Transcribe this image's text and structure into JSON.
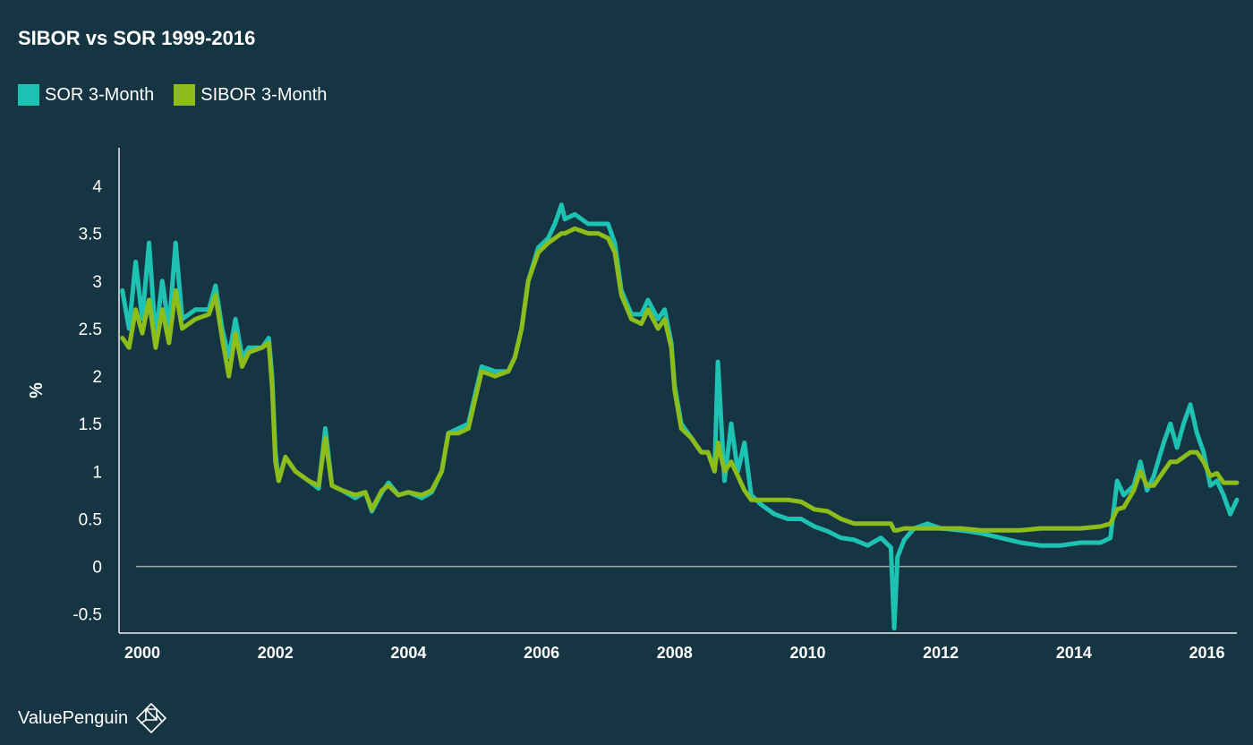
{
  "chart_data": {
    "type": "line",
    "title": "SIBOR vs SOR 1999-2016",
    "ylabel": "%",
    "xlabel": "",
    "xlim": [
      1999.65,
      2016.45
    ],
    "ylim": [
      -0.7,
      4.4
    ],
    "yticks": [
      "4",
      "3.5",
      "3",
      "2.5",
      "2",
      "1.5",
      "1",
      "0.5",
      "0",
      "-0.5"
    ],
    "xticks": [
      "2000",
      "2002",
      "2004",
      "2006",
      "2008",
      "2010",
      "2012",
      "2014",
      "2016"
    ],
    "legend_position": "top-left",
    "series": [
      {
        "name": "SOR 3-Month",
        "color": "#1ec2b2",
        "points": [
          [
            1999.7,
            2.9
          ],
          [
            1999.8,
            2.5
          ],
          [
            1999.9,
            3.2
          ],
          [
            2000.0,
            2.6
          ],
          [
            2000.1,
            3.4
          ],
          [
            2000.2,
            2.4
          ],
          [
            2000.3,
            3.0
          ],
          [
            2000.4,
            2.5
          ],
          [
            2000.5,
            3.4
          ],
          [
            2000.6,
            2.6
          ],
          [
            2000.8,
            2.7
          ],
          [
            2001.0,
            2.7
          ],
          [
            2001.1,
            2.95
          ],
          [
            2001.2,
            2.5
          ],
          [
            2001.3,
            2.2
          ],
          [
            2001.4,
            2.6
          ],
          [
            2001.5,
            2.2
          ],
          [
            2001.6,
            2.3
          ],
          [
            2001.8,
            2.3
          ],
          [
            2001.9,
            2.4
          ],
          [
            2001.95,
            2.0
          ],
          [
            2002.0,
            1.2
          ],
          [
            2002.05,
            0.9
          ],
          [
            2002.15,
            1.15
          ],
          [
            2002.3,
            1.0
          ],
          [
            2002.5,
            0.9
          ],
          [
            2002.65,
            0.82
          ],
          [
            2002.75,
            1.45
          ],
          [
            2002.85,
            0.85
          ],
          [
            2003.0,
            0.8
          ],
          [
            2003.2,
            0.72
          ],
          [
            2003.35,
            0.78
          ],
          [
            2003.45,
            0.58
          ],
          [
            2003.6,
            0.78
          ],
          [
            2003.7,
            0.88
          ],
          [
            2003.85,
            0.75
          ],
          [
            2004.0,
            0.78
          ],
          [
            2004.2,
            0.72
          ],
          [
            2004.35,
            0.78
          ],
          [
            2004.5,
            1.0
          ],
          [
            2004.6,
            1.4
          ],
          [
            2004.75,
            1.45
          ],
          [
            2004.9,
            1.5
          ],
          [
            2005.0,
            1.8
          ],
          [
            2005.1,
            2.1
          ],
          [
            2005.3,
            2.05
          ],
          [
            2005.5,
            2.05
          ],
          [
            2005.6,
            2.2
          ],
          [
            2005.7,
            2.5
          ],
          [
            2005.8,
            3.0
          ],
          [
            2005.95,
            3.35
          ],
          [
            2006.1,
            3.45
          ],
          [
            2006.2,
            3.6
          ],
          [
            2006.3,
            3.8
          ],
          [
            2006.35,
            3.65
          ],
          [
            2006.5,
            3.7
          ],
          [
            2006.7,
            3.6
          ],
          [
            2006.85,
            3.6
          ],
          [
            2007.0,
            3.6
          ],
          [
            2007.1,
            3.4
          ],
          [
            2007.2,
            2.9
          ],
          [
            2007.35,
            2.65
          ],
          [
            2007.5,
            2.65
          ],
          [
            2007.6,
            2.8
          ],
          [
            2007.75,
            2.6
          ],
          [
            2007.85,
            2.7
          ],
          [
            2007.95,
            2.35
          ],
          [
            2008.0,
            1.9
          ],
          [
            2008.1,
            1.5
          ],
          [
            2008.25,
            1.35
          ],
          [
            2008.4,
            1.2
          ],
          [
            2008.5,
            1.2
          ],
          [
            2008.6,
            1.0
          ],
          [
            2008.65,
            2.15
          ],
          [
            2008.75,
            0.9
          ],
          [
            2008.85,
            1.5
          ],
          [
            2008.95,
            1.0
          ],
          [
            2009.05,
            1.3
          ],
          [
            2009.15,
            0.75
          ],
          [
            2009.3,
            0.65
          ],
          [
            2009.5,
            0.55
          ],
          [
            2009.7,
            0.5
          ],
          [
            2009.9,
            0.5
          ],
          [
            2010.1,
            0.42
          ],
          [
            2010.3,
            0.37
          ],
          [
            2010.5,
            0.3
          ],
          [
            2010.7,
            0.28
          ],
          [
            2010.9,
            0.22
          ],
          [
            2011.1,
            0.3
          ],
          [
            2011.25,
            0.2
          ],
          [
            2011.3,
            -0.65
          ],
          [
            2011.35,
            0.1
          ],
          [
            2011.45,
            0.28
          ],
          [
            2011.6,
            0.4
          ],
          [
            2011.8,
            0.45
          ],
          [
            2012.0,
            0.4
          ],
          [
            2012.3,
            0.38
          ],
          [
            2012.6,
            0.35
          ],
          [
            2012.9,
            0.3
          ],
          [
            2013.2,
            0.25
          ],
          [
            2013.5,
            0.22
          ],
          [
            2013.8,
            0.22
          ],
          [
            2014.1,
            0.25
          ],
          [
            2014.4,
            0.25
          ],
          [
            2014.55,
            0.3
          ],
          [
            2014.65,
            0.9
          ],
          [
            2014.75,
            0.75
          ],
          [
            2014.9,
            0.85
          ],
          [
            2015.0,
            1.1
          ],
          [
            2015.1,
            0.8
          ],
          [
            2015.2,
            0.95
          ],
          [
            2015.35,
            1.3
          ],
          [
            2015.45,
            1.5
          ],
          [
            2015.55,
            1.25
          ],
          [
            2015.65,
            1.5
          ],
          [
            2015.75,
            1.7
          ],
          [
            2015.85,
            1.4
          ],
          [
            2015.95,
            1.2
          ],
          [
            2016.05,
            0.85
          ],
          [
            2016.15,
            0.9
          ],
          [
            2016.25,
            0.75
          ],
          [
            2016.35,
            0.55
          ],
          [
            2016.45,
            0.7
          ]
        ]
      },
      {
        "name": "SIBOR 3-Month",
        "color": "#8cbd1a",
        "points": [
          [
            1999.7,
            2.4
          ],
          [
            1999.8,
            2.3
          ],
          [
            1999.9,
            2.7
          ],
          [
            2000.0,
            2.45
          ],
          [
            2000.1,
            2.8
          ],
          [
            2000.2,
            2.3
          ],
          [
            2000.3,
            2.7
          ],
          [
            2000.4,
            2.35
          ],
          [
            2000.5,
            2.9
          ],
          [
            2000.6,
            2.5
          ],
          [
            2000.8,
            2.6
          ],
          [
            2001.0,
            2.65
          ],
          [
            2001.1,
            2.85
          ],
          [
            2001.2,
            2.4
          ],
          [
            2001.3,
            2.0
          ],
          [
            2001.4,
            2.45
          ],
          [
            2001.5,
            2.1
          ],
          [
            2001.6,
            2.25
          ],
          [
            2001.8,
            2.3
          ],
          [
            2001.9,
            2.35
          ],
          [
            2001.95,
            1.9
          ],
          [
            2002.0,
            1.1
          ],
          [
            2002.05,
            0.9
          ],
          [
            2002.15,
            1.15
          ],
          [
            2002.3,
            1.0
          ],
          [
            2002.5,
            0.9
          ],
          [
            2002.65,
            0.85
          ],
          [
            2002.75,
            1.35
          ],
          [
            2002.85,
            0.85
          ],
          [
            2003.0,
            0.8
          ],
          [
            2003.2,
            0.75
          ],
          [
            2003.35,
            0.78
          ],
          [
            2003.45,
            0.6
          ],
          [
            2003.6,
            0.8
          ],
          [
            2003.7,
            0.85
          ],
          [
            2003.85,
            0.75
          ],
          [
            2004.0,
            0.78
          ],
          [
            2004.2,
            0.75
          ],
          [
            2004.35,
            0.8
          ],
          [
            2004.5,
            1.0
          ],
          [
            2004.6,
            1.4
          ],
          [
            2004.75,
            1.4
          ],
          [
            2004.9,
            1.45
          ],
          [
            2005.0,
            1.75
          ],
          [
            2005.1,
            2.05
          ],
          [
            2005.3,
            2.0
          ],
          [
            2005.5,
            2.05
          ],
          [
            2005.6,
            2.2
          ],
          [
            2005.7,
            2.5
          ],
          [
            2005.8,
            3.0
          ],
          [
            2005.95,
            3.3
          ],
          [
            2006.1,
            3.4
          ],
          [
            2006.2,
            3.45
          ],
          [
            2006.3,
            3.5
          ],
          [
            2006.35,
            3.5
          ],
          [
            2006.5,
            3.55
          ],
          [
            2006.7,
            3.5
          ],
          [
            2006.85,
            3.5
          ],
          [
            2007.0,
            3.45
          ],
          [
            2007.1,
            3.3
          ],
          [
            2007.2,
            2.85
          ],
          [
            2007.35,
            2.6
          ],
          [
            2007.5,
            2.55
          ],
          [
            2007.6,
            2.7
          ],
          [
            2007.75,
            2.5
          ],
          [
            2007.85,
            2.6
          ],
          [
            2007.95,
            2.3
          ],
          [
            2008.0,
            1.85
          ],
          [
            2008.1,
            1.45
          ],
          [
            2008.25,
            1.35
          ],
          [
            2008.4,
            1.2
          ],
          [
            2008.5,
            1.2
          ],
          [
            2008.6,
            1.0
          ],
          [
            2008.65,
            1.3
          ],
          [
            2008.75,
            1.0
          ],
          [
            2008.85,
            1.1
          ],
          [
            2008.95,
            0.95
          ],
          [
            2009.05,
            0.8
          ],
          [
            2009.15,
            0.7
          ],
          [
            2009.3,
            0.7
          ],
          [
            2009.5,
            0.7
          ],
          [
            2009.7,
            0.7
          ],
          [
            2009.9,
            0.68
          ],
          [
            2010.1,
            0.6
          ],
          [
            2010.3,
            0.58
          ],
          [
            2010.5,
            0.5
          ],
          [
            2010.7,
            0.45
          ],
          [
            2010.9,
            0.45
          ],
          [
            2011.1,
            0.45
          ],
          [
            2011.25,
            0.45
          ],
          [
            2011.3,
            0.38
          ],
          [
            2011.35,
            0.38
          ],
          [
            2011.45,
            0.4
          ],
          [
            2011.6,
            0.4
          ],
          [
            2011.8,
            0.4
          ],
          [
            2012.0,
            0.4
          ],
          [
            2012.3,
            0.4
          ],
          [
            2012.6,
            0.38
          ],
          [
            2012.9,
            0.38
          ],
          [
            2013.2,
            0.38
          ],
          [
            2013.5,
            0.4
          ],
          [
            2013.8,
            0.4
          ],
          [
            2014.1,
            0.4
          ],
          [
            2014.4,
            0.42
          ],
          [
            2014.55,
            0.45
          ],
          [
            2014.65,
            0.6
          ],
          [
            2014.75,
            0.62
          ],
          [
            2014.9,
            0.8
          ],
          [
            2015.0,
            1.0
          ],
          [
            2015.1,
            0.85
          ],
          [
            2015.2,
            0.85
          ],
          [
            2015.35,
            1.0
          ],
          [
            2015.45,
            1.1
          ],
          [
            2015.55,
            1.1
          ],
          [
            2015.65,
            1.15
          ],
          [
            2015.75,
            1.2
          ],
          [
            2015.85,
            1.2
          ],
          [
            2015.95,
            1.1
          ],
          [
            2016.05,
            0.95
          ],
          [
            2016.15,
            0.98
          ],
          [
            2016.25,
            0.88
          ],
          [
            2016.35,
            0.88
          ],
          [
            2016.45,
            0.88
          ]
        ]
      }
    ]
  },
  "brand": {
    "name": "ValuePenguin"
  }
}
